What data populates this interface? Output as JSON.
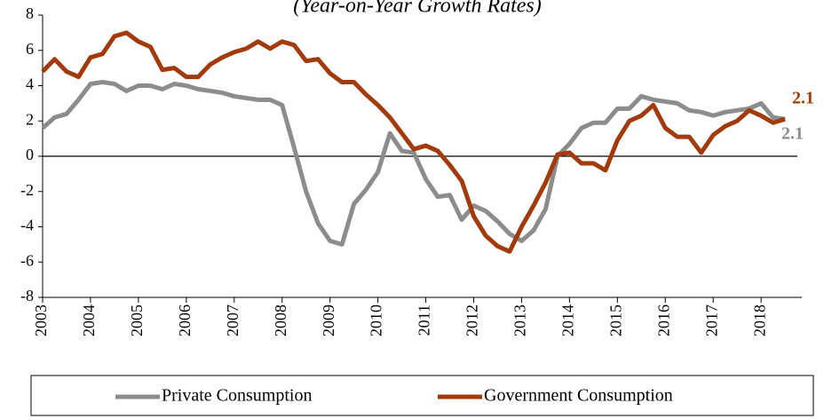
{
  "chart_data": {
    "type": "line",
    "title": "(Year-on-Year Growth Rates)",
    "x": [
      2003,
      2003.25,
      2003.5,
      2003.75,
      2004,
      2004.25,
      2004.5,
      2004.75,
      2005,
      2005.25,
      2005.5,
      2005.75,
      2006,
      2006.25,
      2006.5,
      2006.75,
      2007,
      2007.25,
      2007.5,
      2007.75,
      2008,
      2008.25,
      2008.5,
      2008.75,
      2009,
      2009.25,
      2009.5,
      2009.75,
      2010,
      2010.25,
      2010.5,
      2010.75,
      2011,
      2011.25,
      2011.5,
      2011.75,
      2012,
      2012.25,
      2012.5,
      2012.75,
      2013,
      2013.25,
      2013.5,
      2013.75,
      2014,
      2014.25,
      2014.5,
      2014.75,
      2015,
      2015.25,
      2015.5,
      2015.75,
      2016,
      2016.25,
      2016.5,
      2016.75,
      2017,
      2017.25,
      2017.5,
      2017.75,
      2018,
      2018.25,
      2018.5
    ],
    "series": [
      {
        "name": "Private Consumption",
        "color": "#8c8c8c",
        "values": [
          1.6,
          2.2,
          2.4,
          3.2,
          4.1,
          4.2,
          4.1,
          3.7,
          4.0,
          4.0,
          3.8,
          4.1,
          4.0,
          3.8,
          3.7,
          3.6,
          3.4,
          3.3,
          3.2,
          3.2,
          2.9,
          0.5,
          -2.0,
          -3.8,
          -4.8,
          -5.0,
          -2.7,
          -1.9,
          -0.9,
          1.3,
          0.3,
          0.2,
          -1.3,
          -2.3,
          -2.2,
          -3.6,
          -2.8,
          -3.1,
          -3.7,
          -4.4,
          -4.8,
          -4.2,
          -3.0,
          0.0,
          0.7,
          1.6,
          1.9,
          1.9,
          2.7,
          2.7,
          3.4,
          3.2,
          3.1,
          3.0,
          2.6,
          2.5,
          2.3,
          2.5,
          2.6,
          2.7,
          3.0,
          2.2,
          2.1
        ]
      },
      {
        "name": "Government Consumption",
        "color": "#a33a0b",
        "values": [
          4.8,
          5.5,
          4.8,
          4.5,
          5.6,
          5.8,
          6.8,
          7.0,
          6.5,
          6.2,
          4.9,
          5.0,
          4.5,
          4.5,
          5.2,
          5.6,
          5.9,
          6.1,
          6.5,
          6.1,
          6.5,
          6.3,
          5.4,
          5.5,
          4.7,
          4.2,
          4.2,
          3.5,
          2.9,
          2.2,
          1.3,
          0.4,
          0.6,
          0.3,
          -0.5,
          -1.4,
          -3.4,
          -4.5,
          -5.1,
          -5.4,
          -4.0,
          -2.8,
          -1.5,
          0.1,
          0.2,
          -0.4,
          -0.4,
          -0.8,
          0.9,
          2.0,
          2.3,
          2.9,
          1.6,
          1.1,
          1.1,
          0.2,
          1.2,
          1.7,
          2.0,
          2.6,
          2.3,
          1.9,
          2.1
        ]
      }
    ],
    "xlim": [
      2003,
      2018.85
    ],
    "xticks": [
      2003,
      2004,
      2005,
      2006,
      2007,
      2008,
      2009,
      2010,
      2011,
      2012,
      2013,
      2014,
      2015,
      2016,
      2017,
      2018
    ],
    "ylim": [
      -8,
      8
    ],
    "yticks": [
      -8,
      -6,
      -4,
      -2,
      0,
      2,
      4,
      6,
      8
    ]
  }
}
